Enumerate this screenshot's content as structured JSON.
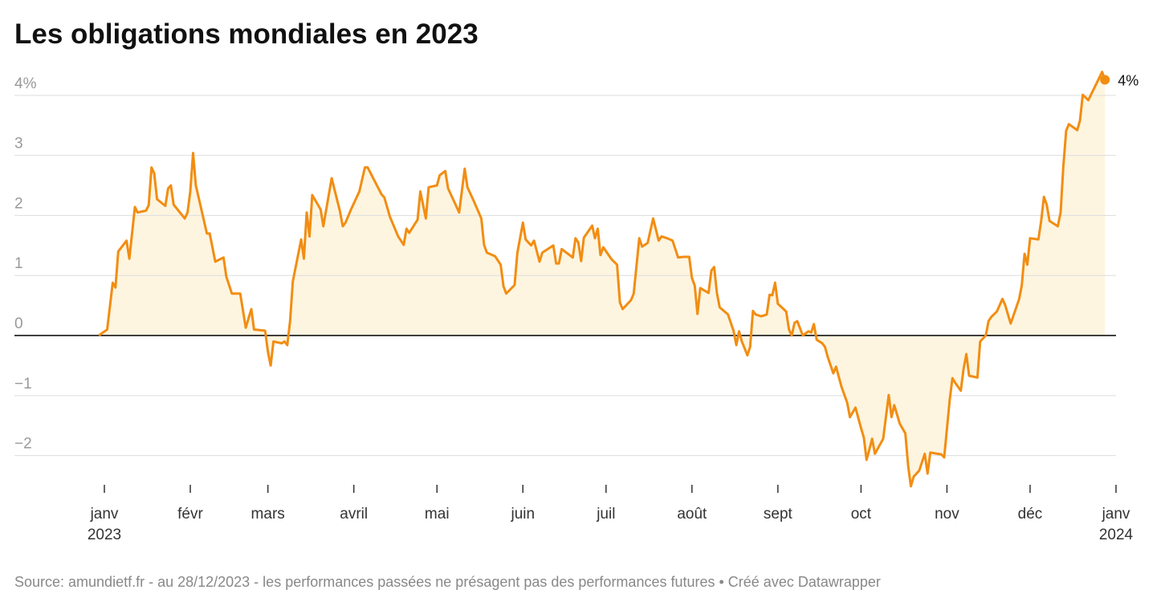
{
  "chart_data": {
    "type": "area-line",
    "title": "Les obligations mondiales en 2023",
    "source": "Source: amundietf.fr - au 28/12/2023 - les performances passées ne présagent pas des performances futures • Créé avec Datawrapper",
    "end_label": "4%",
    "color": "#f28d12",
    "fill_color": "#fdf5e0",
    "xlim": [
      "2023-01-01",
      "2024-01-01"
    ],
    "ylim": [
      -2.6,
      4.4
    ],
    "yticks": [
      -2,
      -1,
      0,
      1,
      2,
      3,
      {
        "value": 4,
        "label": "4%"
      }
    ],
    "ytick_labels": {
      "-2": "−2",
      "-1": "−1"
    },
    "xticks": [
      {
        "value": "2023-01",
        "label": [
          "janv",
          "2023"
        ]
      },
      {
        "value": "2023-02",
        "label": [
          "févr"
        ]
      },
      {
        "value": "2023-03",
        "label": [
          "mars"
        ]
      },
      {
        "value": "2023-04",
        "label": [
          "avril"
        ]
      },
      {
        "value": "2023-05",
        "label": [
          "mai"
        ]
      },
      {
        "value": "2023-06",
        "label": [
          "juin"
        ]
      },
      {
        "value": "2023-07",
        "label": [
          "juil"
        ]
      },
      {
        "value": "2023-08",
        "label": [
          "août"
        ]
      },
      {
        "value": "2023-09",
        "label": [
          "sept"
        ]
      },
      {
        "value": "2023-10",
        "label": [
          "oct"
        ]
      },
      {
        "value": "2023-11",
        "label": [
          "nov"
        ]
      },
      {
        "value": "2023-12",
        "label": [
          "déc"
        ]
      },
      {
        "value": "2024-01",
        "label": [
          "janv",
          "2024"
        ]
      }
    ],
    "grid": true,
    "x": [
      "2022-12-30",
      "2023-01-02",
      "2023-01-04",
      "2023-01-05",
      "2023-01-06",
      "2023-01-09",
      "2023-01-10",
      "2023-01-12",
      "2023-01-13",
      "2023-01-16",
      "2023-01-17",
      "2023-01-18",
      "2023-01-19",
      "2023-01-20",
      "2023-01-23",
      "2023-01-24",
      "2023-01-25",
      "2023-01-26",
      "2023-01-30",
      "2023-01-31",
      "2023-02-01",
      "2023-02-02",
      "2023-02-03",
      "2023-02-05",
      "2023-02-07",
      "2023-02-08",
      "2023-02-10",
      "2023-02-13",
      "2023-02-14",
      "2023-02-16",
      "2023-02-19",
      "2023-02-21",
      "2023-02-23",
      "2023-02-24",
      "2023-02-28",
      "2023-03-01",
      "2023-03-02",
      "2023-03-03",
      "2023-03-06",
      "2023-03-07",
      "2023-03-08",
      "2023-03-09",
      "2023-03-10",
      "2023-03-13",
      "2023-03-14",
      "2023-03-15",
      "2023-03-16",
      "2023-03-17",
      "2023-03-20",
      "2023-03-21",
      "2023-03-24",
      "2023-03-27",
      "2023-03-28",
      "2023-03-29",
      "2023-03-31",
      "2023-04-03",
      "2023-04-05",
      "2023-04-06",
      "2023-04-11",
      "2023-04-12",
      "2023-04-14",
      "2023-04-17",
      "2023-04-19",
      "2023-04-20",
      "2023-04-21",
      "2023-04-24",
      "2023-04-25",
      "2023-04-27",
      "2023-04-28",
      "2023-05-01",
      "2023-05-02",
      "2023-05-04",
      "2023-05-05",
      "2023-05-09",
      "2023-05-11",
      "2023-05-12",
      "2023-05-14",
      "2023-05-17",
      "2023-05-18",
      "2023-05-19",
      "2023-05-22",
      "2023-05-24",
      "2023-05-25",
      "2023-05-26",
      "2023-05-29",
      "2023-05-30",
      "2023-06-01",
      "2023-06-02",
      "2023-06-04",
      "2023-06-05",
      "2023-06-07",
      "2023-06-08",
      "2023-06-12",
      "2023-06-13",
      "2023-06-14",
      "2023-06-15",
      "2023-06-19",
      "2023-06-20",
      "2023-06-21",
      "2023-06-22",
      "2023-06-23",
      "2023-06-26",
      "2023-06-27",
      "2023-06-28",
      "2023-06-29",
      "2023-06-30",
      "2023-07-03",
      "2023-07-05",
      "2023-07-06",
      "2023-07-07",
      "2023-07-10",
      "2023-07-11",
      "2023-07-13",
      "2023-07-14",
      "2023-07-16",
      "2023-07-18",
      "2023-07-20",
      "2023-07-21",
      "2023-07-23",
      "2023-07-25",
      "2023-07-27",
      "2023-07-29",
      "2023-07-31",
      "2023-08-01",
      "2023-08-02",
      "2023-08-03",
      "2023-08-04",
      "2023-08-07",
      "2023-08-08",
      "2023-08-09",
      "2023-08-10",
      "2023-08-11",
      "2023-08-14",
      "2023-08-16",
      "2023-08-17",
      "2023-08-18",
      "2023-08-19",
      "2023-08-21",
      "2023-08-22",
      "2023-08-23",
      "2023-08-24",
      "2023-08-26",
      "2023-08-28",
      "2023-08-29",
      "2023-08-30",
      "2023-08-31",
      "2023-09-01",
      "2023-09-04",
      "2023-09-05",
      "2023-09-06",
      "2023-09-07",
      "2023-09-08",
      "2023-09-10",
      "2023-09-12",
      "2023-09-13",
      "2023-09-14",
      "2023-09-15",
      "2023-09-17",
      "2023-09-18",
      "2023-09-19",
      "2023-09-21",
      "2023-09-22",
      "2023-09-24",
      "2023-09-26",
      "2023-09-27",
      "2023-09-29",
      "2023-10-01",
      "2023-10-02",
      "2023-10-03",
      "2023-10-04",
      "2023-10-05",
      "2023-10-06",
      "2023-10-09",
      "2023-10-11",
      "2023-10-12",
      "2023-10-13",
      "2023-10-15",
      "2023-10-17",
      "2023-10-18",
      "2023-10-19",
      "2023-10-20",
      "2023-10-22",
      "2023-10-24",
      "2023-10-25",
      "2023-10-26",
      "2023-10-30",
      "2023-10-31",
      "2023-11-02",
      "2023-11-03",
      "2023-11-04",
      "2023-11-06",
      "2023-11-07",
      "2023-11-08",
      "2023-11-09",
      "2023-11-12",
      "2023-11-13",
      "2023-11-15",
      "2023-11-16",
      "2023-11-17",
      "2023-11-19",
      "2023-11-21",
      "2023-11-22",
      "2023-11-24",
      "2023-11-27",
      "2023-11-28",
      "2023-11-29",
      "2023-11-30",
      "2023-12-01",
      "2023-12-04",
      "2023-12-05",
      "2023-12-06",
      "2023-12-07",
      "2023-12-08",
      "2023-12-11",
      "2023-12-12",
      "2023-12-13",
      "2023-12-14",
      "2023-12-15",
      "2023-12-18",
      "2023-12-19",
      "2023-12-20",
      "2023-12-22",
      "2023-12-27",
      "2023-12-28"
    ],
    "values": [
      0,
      0.1,
      0.88,
      0.8,
      1.4,
      1.58,
      1.28,
      2.14,
      2.05,
      2.08,
      2.17,
      2.8,
      2.7,
      2.27,
      2.16,
      2.45,
      2.5,
      2.18,
      1.95,
      2.05,
      2.4,
      3.04,
      2.5,
      2.1,
      1.7,
      1.7,
      1.23,
      1.3,
      0.98,
      0.7,
      0.7,
      0.13,
      0.44,
      0.1,
      0.08,
      -0.27,
      -0.5,
      -0.1,
      -0.13,
      -0.1,
      -0.16,
      0.24,
      0.9,
      1.6,
      1.28,
      2.05,
      1.65,
      2.34,
      2.1,
      1.82,
      2.62,
      2.07,
      1.82,
      1.88,
      2.1,
      2.4,
      2.8,
      2.8,
      2.35,
      2.3,
      1.98,
      1.65,
      1.51,
      1.78,
      1.71,
      1.93,
      2.4,
      1.95,
      2.47,
      2.5,
      2.67,
      2.74,
      2.45,
      2.05,
      2.78,
      2.47,
      2.27,
      1.95,
      1.51,
      1.38,
      1.32,
      1.18,
      0.82,
      0.7,
      0.84,
      1.38,
      1.88,
      1.6,
      1.5,
      1.58,
      1.23,
      1.38,
      1.5,
      1.2,
      1.2,
      1.44,
      1.3,
      1.62,
      1.55,
      1.24,
      1.63,
      1.83,
      1.62,
      1.78,
      1.34,
      1.47,
      1.27,
      1.18,
      0.55,
      0.44,
      0.59,
      0.7,
      1.62,
      1.48,
      1.54,
      1.95,
      1.58,
      1.65,
      1.62,
      1.58,
      1.3,
      1.31,
      1.31,
      0.96,
      0.83,
      0.36,
      0.79,
      0.71,
      1.08,
      1.14,
      0.71,
      0.47,
      0.35,
      0.08,
      -0.16,
      0.07,
      -0.1,
      -0.33,
      -0.19,
      0.41,
      0.35,
      0.32,
      0.35,
      0.68,
      0.67,
      0.88,
      0.53,
      0.4,
      0.1,
      0,
      0.21,
      0.24,
      0,
      0.07,
      0.05,
      0.19,
      -0.07,
      -0.13,
      -0.19,
      -0.36,
      -0.63,
      -0.52,
      -0.86,
      -1.12,
      -1.36,
      -1.2,
      -1.54,
      -1.7,
      -2.07,
      -1.9,
      -1.72,
      -1.97,
      -1.72,
      -0.99,
      -1.36,
      -1.16,
      -1.47,
      -1.63,
      -2.17,
      -2.51,
      -2.35,
      -2.25,
      -1.97,
      -2.3,
      -1.95,
      -1.98,
      -2.03,
      -1.07,
      -0.71,
      -0.79,
      -0.92,
      -0.56,
      -0.31,
      -0.67,
      -0.7,
      -0.1,
      0,
      0.24,
      0.31,
      0.4,
      0.61,
      0.51,
      0.2,
      0.6,
      0.83,
      1.36,
      1.18,
      1.62,
      1.6,
      1.91,
      2.31,
      2.18,
      1.91,
      1.82,
      2.05,
      2.82,
      3.41,
      3.52,
      3.42,
      3.58,
      4.01,
      3.92,
      4.39,
      4.26
    ]
  }
}
